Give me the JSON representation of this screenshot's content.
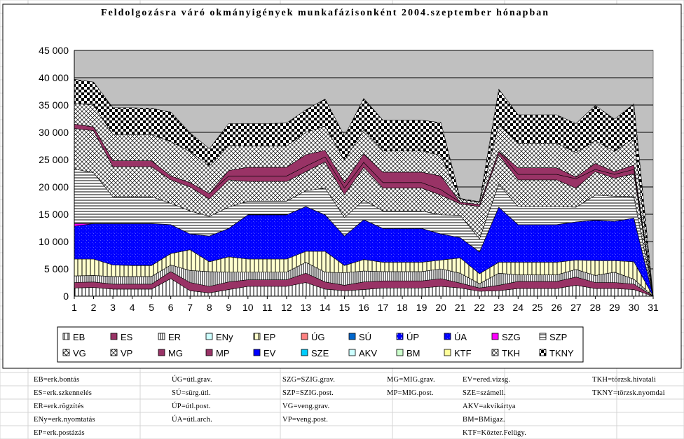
{
  "chart_data": {
    "type": "area",
    "stacked": true,
    "title": "Feldolgozásra váró okmányigények munkafázisonként 2004.szeptember hónapban",
    "xlabel": "",
    "ylabel": "",
    "ylim": [
      0,
      45000
    ],
    "yticks": [
      "0",
      "5 000",
      "10 000",
      "15 000",
      "20 000",
      "25 000",
      "30 000",
      "35 000",
      "40 000",
      "45 000"
    ],
    "grid": true,
    "legend_position": "bottom",
    "categories": [
      "1",
      "2",
      "3",
      "4",
      "5",
      "6",
      "7",
      "8",
      "9",
      "10",
      "11",
      "12",
      "13",
      "14",
      "15",
      "16",
      "17",
      "18",
      "19",
      "20",
      "21",
      "22",
      "23",
      "24",
      "25",
      "26",
      "27",
      "28",
      "29",
      "30",
      "31"
    ],
    "cumulative_top": [
      {
        "name": "EB",
        "values": [
          1500,
          1600,
          1300,
          1300,
          1300,
          3200,
          1000,
          600,
          1200,
          1800,
          1800,
          1800,
          2500,
          1300,
          1000,
          1200,
          1500,
          1500,
          1500,
          1800,
          1500,
          900,
          1000,
          1400,
          1400,
          1400,
          2000,
          1400,
          1400,
          1200,
          0
        ]
      },
      {
        "name": "ES",
        "values": [
          2500,
          2600,
          2200,
          2200,
          2200,
          4500,
          2500,
          1800,
          2600,
          3000,
          3000,
          3000,
          4200,
          2600,
          2000,
          2600,
          2800,
          2800,
          2800,
          3200,
          2400,
          1500,
          2000,
          2700,
          2700,
          2700,
          3500,
          2500,
          2500,
          2200,
          0
        ]
      },
      {
        "name": "ER",
        "values": [
          3700,
          3800,
          3600,
          3600,
          3600,
          5700,
          4700,
          4500,
          4400,
          4400,
          4400,
          4400,
          6200,
          4400,
          4300,
          4600,
          4500,
          4500,
          4500,
          5000,
          4200,
          2300,
          4200,
          3900,
          3900,
          3900,
          4900,
          3800,
          4400,
          3100,
          0
        ]
      },
      {
        "name": "ENy",
        "values": [
          3700,
          3800,
          3600,
          3600,
          3600,
          5700,
          4700,
          4500,
          4400,
          4400,
          4400,
          4400,
          6200,
          4400,
          4300,
          4600,
          4500,
          4500,
          4500,
          5000,
          4200,
          2300,
          4200,
          3900,
          3900,
          3900,
          4900,
          3800,
          4400,
          3100,
          0
        ]
      },
      {
        "name": "EP",
        "values": [
          6800,
          6800,
          5700,
          5600,
          5600,
          7800,
          8500,
          6300,
          7200,
          6800,
          6800,
          6800,
          8200,
          8200,
          5600,
          6700,
          6200,
          6200,
          6200,
          6600,
          7000,
          4100,
          6200,
          6200,
          6200,
          6200,
          6600,
          6500,
          6500,
          6300,
          0
        ]
      },
      {
        "name": "ÚG",
        "values": [
          6800,
          6800,
          5700,
          5600,
          5600,
          7800,
          8500,
          6300,
          7200,
          6800,
          6800,
          6800,
          8200,
          8200,
          5600,
          6700,
          6200,
          6200,
          6200,
          6600,
          7000,
          4100,
          6200,
          6200,
          6200,
          6200,
          6600,
          6500,
          6500,
          6300,
          0
        ]
      },
      {
        "name": "SÚ",
        "values": [
          6800,
          6800,
          5700,
          5600,
          5600,
          7800,
          8500,
          6300,
          7200,
          6800,
          6800,
          6800,
          8200,
          8200,
          5600,
          6700,
          6200,
          6200,
          6200,
          6600,
          7000,
          4100,
          6200,
          6200,
          6200,
          6200,
          6600,
          6500,
          6500,
          6300,
          0
        ]
      },
      {
        "name": "ÚP",
        "values": [
          6800,
          6800,
          5700,
          5600,
          5600,
          7800,
          8500,
          6300,
          7200,
          6800,
          6800,
          6800,
          8200,
          8200,
          5600,
          6700,
          6200,
          6200,
          6200,
          6600,
          7000,
          4100,
          6200,
          6200,
          6200,
          6200,
          6600,
          6500,
          6500,
          6300,
          0
        ]
      },
      {
        "name": "ÚA",
        "values": [
          12800,
          13300,
          13300,
          13300,
          13300,
          13100,
          11400,
          11000,
          12400,
          14900,
          14900,
          14900,
          16400,
          14900,
          11000,
          14000,
          12400,
          12400,
          12400,
          11400,
          10700,
          8100,
          16300,
          13100,
          13100,
          13100,
          13600,
          13900,
          13700,
          14300,
          0
        ]
      },
      {
        "name": "SZG",
        "values": [
          13300,
          13300,
          13300,
          13300,
          13300,
          13100,
          11400,
          11000,
          12400,
          14900,
          14900,
          14900,
          16400,
          14900,
          11000,
          14000,
          12400,
          12400,
          12400,
          11400,
          10700,
          8100,
          16300,
          13100,
          13100,
          13100,
          13600,
          13900,
          13700,
          14300,
          0
        ]
      },
      {
        "name": "SZP",
        "values": [
          23300,
          22600,
          18200,
          18200,
          18200,
          17000,
          15600,
          14600,
          16300,
          17400,
          17400,
          17400,
          19300,
          19800,
          14400,
          17600,
          15600,
          15600,
          15600,
          14900,
          14800,
          10500,
          20500,
          16400,
          16400,
          16400,
          16300,
          18500,
          18300,
          18200,
          0
        ]
      },
      {
        "name": "VG",
        "values": [
          23300,
          22600,
          18200,
          18200,
          18200,
          17000,
          15600,
          14600,
          16300,
          17400,
          17400,
          17400,
          19300,
          19800,
          14400,
          17600,
          15600,
          15600,
          15600,
          14900,
          14800,
          10500,
          20500,
          16400,
          16400,
          16400,
          16300,
          18500,
          18300,
          18200,
          0
        ]
      },
      {
        "name": "VP",
        "values": [
          30700,
          30300,
          23700,
          23700,
          23700,
          21300,
          20000,
          17800,
          21300,
          21000,
          21000,
          21000,
          22800,
          24600,
          18600,
          23600,
          19800,
          19800,
          19800,
          18500,
          16900,
          16400,
          25900,
          21300,
          21300,
          21300,
          19800,
          22800,
          21600,
          22400,
          0
        ]
      },
      {
        "name": "MG",
        "values": [
          31500,
          31000,
          24800,
          24800,
          24800,
          22000,
          20800,
          18800,
          22000,
          22000,
          22000,
          22000,
          23800,
          25500,
          19800,
          24500,
          20800,
          20800,
          20800,
          19500,
          17200,
          16800,
          26500,
          22300,
          22300,
          22300,
          21500,
          23200,
          22300,
          23200,
          0
        ]
      },
      {
        "name": "MP",
        "values": [
          31500,
          31000,
          24800,
          24800,
          24800,
          22000,
          20800,
          18800,
          23000,
          23600,
          23600,
          23600,
          25900,
          26700,
          20800,
          26000,
          22700,
          22700,
          22700,
          22000,
          17200,
          16800,
          26500,
          23500,
          23500,
          23500,
          21800,
          24300,
          22800,
          24000,
          0
        ]
      },
      {
        "name": "EV",
        "values": [
          31500,
          31000,
          24800,
          24800,
          24800,
          22000,
          20800,
          18800,
          23000,
          23600,
          23600,
          23600,
          25900,
          26700,
          20800,
          26000,
          22700,
          22700,
          22700,
          22000,
          17200,
          16800,
          26500,
          23500,
          23500,
          23500,
          21800,
          24300,
          22800,
          24000,
          0
        ]
      },
      {
        "name": "SZE",
        "values": [
          31500,
          31000,
          24800,
          24800,
          24800,
          22000,
          20800,
          18800,
          23000,
          23600,
          23600,
          23600,
          25900,
          26700,
          20800,
          26000,
          22700,
          22700,
          22700,
          22000,
          17200,
          16800,
          26500,
          23500,
          23500,
          23500,
          21800,
          24300,
          22800,
          24000,
          0
        ]
      },
      {
        "name": "AKV",
        "values": [
          31500,
          31000,
          24800,
          24800,
          24800,
          22000,
          20800,
          18800,
          23000,
          23600,
          23600,
          23600,
          25900,
          26700,
          20800,
          26000,
          22700,
          22700,
          22700,
          22000,
          17200,
          16800,
          26500,
          23500,
          23500,
          23500,
          21800,
          24300,
          22800,
          24000,
          0
        ]
      },
      {
        "name": "BM",
        "values": [
          31500,
          31000,
          24800,
          24800,
          24800,
          22000,
          20800,
          18800,
          23000,
          23600,
          23600,
          23600,
          25900,
          26700,
          20800,
          26000,
          22700,
          22700,
          22700,
          22000,
          17200,
          16800,
          26500,
          23500,
          23500,
          23500,
          21800,
          24300,
          22800,
          24000,
          0
        ]
      },
      {
        "name": "KTF",
        "values": [
          31500,
          31000,
          24800,
          24800,
          24800,
          22000,
          20800,
          18800,
          23000,
          23600,
          23600,
          23600,
          25900,
          26700,
          20800,
          26000,
          22700,
          22700,
          22700,
          22000,
          17200,
          16800,
          26500,
          23500,
          23500,
          23500,
          21800,
          24300,
          22800,
          24000,
          0
        ]
      },
      {
        "name": "TKH",
        "values": [
          35300,
          35000,
          29600,
          29600,
          29600,
          28300,
          26500,
          23800,
          27600,
          27500,
          27500,
          27500,
          30000,
          31100,
          24900,
          30500,
          26600,
          26600,
          26600,
          25800,
          17700,
          17200,
          31500,
          28000,
          28000,
          28000,
          26300,
          28500,
          26500,
          29000,
          0
        ]
      },
      {
        "name": "TKNY",
        "values": [
          39700,
          39200,
          34500,
          34500,
          34400,
          33700,
          29900,
          27000,
          31600,
          31600,
          31600,
          31700,
          34100,
          36100,
          29300,
          36200,
          32200,
          32200,
          32200,
          31800,
          17900,
          17300,
          37900,
          33200,
          33200,
          33200,
          31600,
          34900,
          32400,
          35200,
          0
        ]
      }
    ],
    "legend": [
      {
        "label": "EB",
        "pattern": "p-eb"
      },
      {
        "label": "ES",
        "pattern": "p-es"
      },
      {
        "label": "ER",
        "pattern": "p-er"
      },
      {
        "label": "ENy",
        "pattern": "p-eny"
      },
      {
        "label": "EP",
        "pattern": "p-ep"
      },
      {
        "label": "ÚG",
        "pattern": "p-ug"
      },
      {
        "label": "SÚ",
        "pattern": "p-su"
      },
      {
        "label": "ÚP",
        "pattern": "p-up"
      },
      {
        "label": "ÚA",
        "pattern": "p-ua"
      },
      {
        "label": "SZG",
        "pattern": "p-szg"
      },
      {
        "label": "SZP",
        "pattern": "p-szp"
      },
      {
        "label": "VG",
        "pattern": "p-vg"
      },
      {
        "label": "VP",
        "pattern": "p-vp"
      },
      {
        "label": "MG",
        "pattern": "p-mg"
      },
      {
        "label": "MP",
        "pattern": "p-mp"
      },
      {
        "label": "EV",
        "pattern": "p-ev"
      },
      {
        "label": "SZE",
        "pattern": "p-sze"
      },
      {
        "label": "AKV",
        "pattern": "p-akv"
      },
      {
        "label": "BM",
        "pattern": "p-bm"
      },
      {
        "label": "KTF",
        "pattern": "p-ktf"
      },
      {
        "label": "TKH",
        "pattern": "p-tkh"
      },
      {
        "label": "TKNY",
        "pattern": "p-tkny"
      }
    ],
    "colors": {
      "plot_background": "#c0c0c0",
      "maroon_series": "#993366",
      "blue_series": "#0000ff",
      "pink_series": "#ff00ff"
    }
  },
  "abbreviations": {
    "col1": [
      "EB=erk.bontás",
      "ES=erk.szkennelés",
      "ER=erk.rögzítés",
      "ENy=erk.nyomtatás",
      "EP=erk.postázás"
    ],
    "col2": [
      "ÚG=útl.grav.",
      "SÚ=sürg.útl.",
      "ÚP=útl.post.",
      "ÚA=útl.arch."
    ],
    "col3": [
      "SZG=SZIG.grav.",
      "SZP=SZIG.post.",
      "VG=veng.grav.",
      "VP=veng.post."
    ],
    "col4": [
      "MG=MIG.grav.",
      "MP=MIG.post."
    ],
    "col5": [
      "EV=ered.vizsg.",
      "SZE=számell.",
      "AKV=akvikártya",
      "BM=BMigaz.",
      "KTF=Közter.Felügy."
    ],
    "col6": [
      "TKH=törzsk.hivatali",
      "TKNY=törzsk.nyomdai"
    ]
  }
}
